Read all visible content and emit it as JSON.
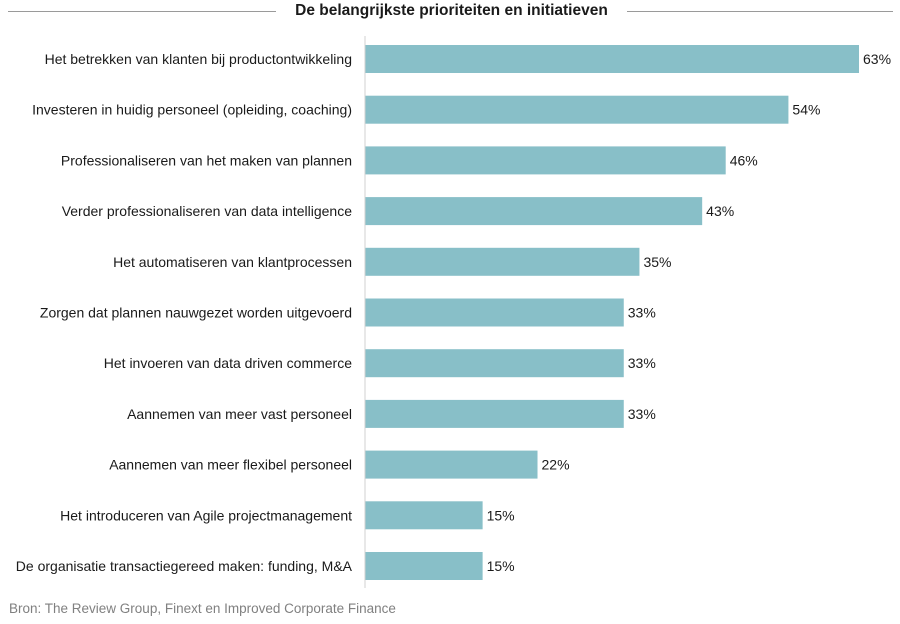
{
  "title": "De belangrijkste prioriteiten en initiatieven",
  "source": "Bron: The Review Group, Finext en Improved Corporate Finance",
  "colors": {
    "bar": "#88bfc8",
    "text": "#1a1a1a",
    "rule": "#9a9a9a",
    "source": "#808080"
  },
  "chart_data": {
    "type": "bar",
    "orientation": "horizontal",
    "title": "De belangrijkste prioriteiten en initiatieven",
    "categories": [
      "Het betrekken van klanten bij productontwikkeling",
      "Investeren in huidig personeel (opleiding, coaching)",
      "Professionaliseren van het maken van plannen",
      "Verder professionaliseren van data intelligence",
      "Het automatiseren van klantprocessen",
      "Zorgen dat plannen nauwgezet worden uitgevoerd",
      "Het invoeren van data driven commerce",
      "Aannemen van meer vast personeel",
      "Aannemen van meer flexibel personeel",
      "Het introduceren van Agile projectmanagement",
      "De organisatie transactiegereed maken: funding, M&A"
    ],
    "values": [
      63,
      54,
      46,
      43,
      35,
      33,
      33,
      33,
      22,
      15,
      15
    ],
    "value_labels": [
      "63%",
      "54%",
      "46%",
      "43%",
      "35%",
      "33%",
      "33%",
      "33%",
      "22%",
      "15%",
      "15%"
    ],
    "xlim": [
      0,
      63
    ],
    "unit": "%",
    "grid": false,
    "legend": "none"
  }
}
